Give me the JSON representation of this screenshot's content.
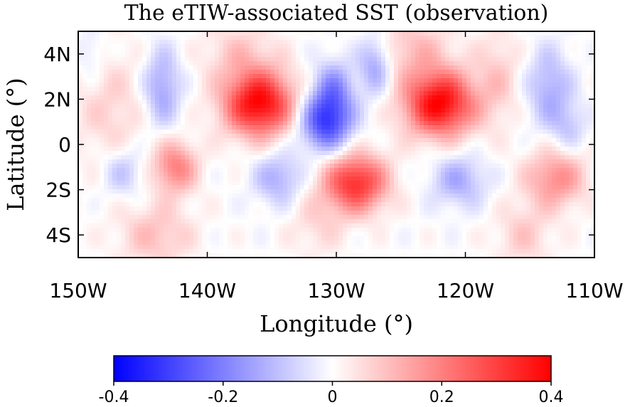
{
  "chart_data": {
    "type": "heatmap",
    "title": "The eTIW-associated SST (observation)",
    "xlabel": "Longitude (°)",
    "ylabel": "Latitude (°)",
    "xlim": [
      -150,
      -110
    ],
    "ylim": [
      -5,
      5
    ],
    "x_ticks": [
      {
        "value": -150,
        "label": "150W"
      },
      {
        "value": -140,
        "label": "140W"
      },
      {
        "value": -130,
        "label": "130W"
      },
      {
        "value": -120,
        "label": "120W"
      },
      {
        "value": -110,
        "label": "110W"
      }
    ],
    "y_ticks": [
      {
        "value": 4,
        "label": "4N"
      },
      {
        "value": 2,
        "label": "2N"
      },
      {
        "value": 0,
        "label": "0"
      },
      {
        "value": -2,
        "label": "2S"
      },
      {
        "value": -4,
        "label": "4S"
      }
    ],
    "colorbar": {
      "vmin": -0.4,
      "vmax": 0.4,
      "colormap": "blue-white-red",
      "ticks": [
        {
          "value": -0.4,
          "label": "-0.4"
        },
        {
          "value": -0.2,
          "label": "-0.2"
        },
        {
          "value": 0,
          "label": "0"
        },
        {
          "value": 0.2,
          "label": "0.2"
        },
        {
          "value": 0.4,
          "label": "0.4"
        }
      ]
    },
    "features": [
      {
        "lon": -136.0,
        "lat": 1.8,
        "value": 0.4,
        "sigma_lon": 1.9,
        "sigma_lat": 1.0
      },
      {
        "lon": -122.0,
        "lat": 1.8,
        "value": 0.4,
        "sigma_lon": 1.9,
        "sigma_lat": 1.0
      },
      {
        "lon": -130.8,
        "lat": 1.0,
        "value": -0.3,
        "sigma_lon": 1.4,
        "sigma_lat": 0.9
      },
      {
        "lon": -130.2,
        "lat": 2.5,
        "value": -0.15,
        "sigma_lon": 1.1,
        "sigma_lat": 0.9
      },
      {
        "lon": -127.0,
        "lat": 3.5,
        "value": -0.15,
        "sigma_lon": 0.9,
        "sigma_lat": 0.9
      },
      {
        "lon": -143.5,
        "lat": 2.5,
        "value": -0.15,
        "sigma_lon": 1.0,
        "sigma_lat": 1.2
      },
      {
        "lon": -113.5,
        "lat": 2.5,
        "value": -0.13,
        "sigma_lon": 1.2,
        "sigma_lat": 1.2
      },
      {
        "lon": -112.0,
        "lat": 0.8,
        "value": -0.08,
        "sigma_lon": 1.0,
        "sigma_lat": 0.8
      },
      {
        "lon": -128.5,
        "lat": -1.7,
        "value": 0.33,
        "sigma_lon": 1.7,
        "sigma_lat": 0.9
      },
      {
        "lon": -142.5,
        "lat": -1.0,
        "value": 0.2,
        "sigma_lon": 1.2,
        "sigma_lat": 0.8
      },
      {
        "lon": -113.0,
        "lat": -1.5,
        "value": 0.18,
        "sigma_lon": 1.6,
        "sigma_lat": 0.9
      },
      {
        "lon": -134.5,
        "lat": -1.5,
        "value": -0.13,
        "sigma_lon": 1.3,
        "sigma_lat": 0.8
      },
      {
        "lon": -120.5,
        "lat": -1.6,
        "value": -0.13,
        "sigma_lon": 1.5,
        "sigma_lat": 0.8
      },
      {
        "lon": -146.5,
        "lat": -1.2,
        "value": -0.1,
        "sigma_lon": 1.2,
        "sigma_lat": 0.8
      },
      {
        "lon": -147.5,
        "lat": 1.5,
        "value": 0.07,
        "sigma_lon": 2.0,
        "sigma_lat": 2.0
      },
      {
        "lon": -124.0,
        "lat": 4.2,
        "value": 0.1,
        "sigma_lon": 2.0,
        "sigma_lat": 1.0
      },
      {
        "lon": -137.5,
        "lat": 4.0,
        "value": 0.08,
        "sigma_lon": 2.0,
        "sigma_lat": 1.0
      },
      {
        "lon": -144.0,
        "lat": -4.0,
        "value": 0.1,
        "sigma_lon": 2.0,
        "sigma_lat": 1.0
      },
      {
        "lon": -131.5,
        "lat": -3.5,
        "value": 0.06,
        "sigma_lon": 1.5,
        "sigma_lat": 1.0
      },
      {
        "lon": -115.5,
        "lat": -4.0,
        "value": 0.08,
        "sigma_lon": 1.5,
        "sigma_lat": 1.0
      },
      {
        "lon": -117.5,
        "lat": 3.0,
        "value": 0.08,
        "sigma_lon": 1.2,
        "sigma_lat": 1.5
      },
      {
        "lon": -149.0,
        "lat": 4.0,
        "value": -0.06,
        "sigma_lon": 0.8,
        "sigma_lat": 0.8
      }
    ]
  }
}
